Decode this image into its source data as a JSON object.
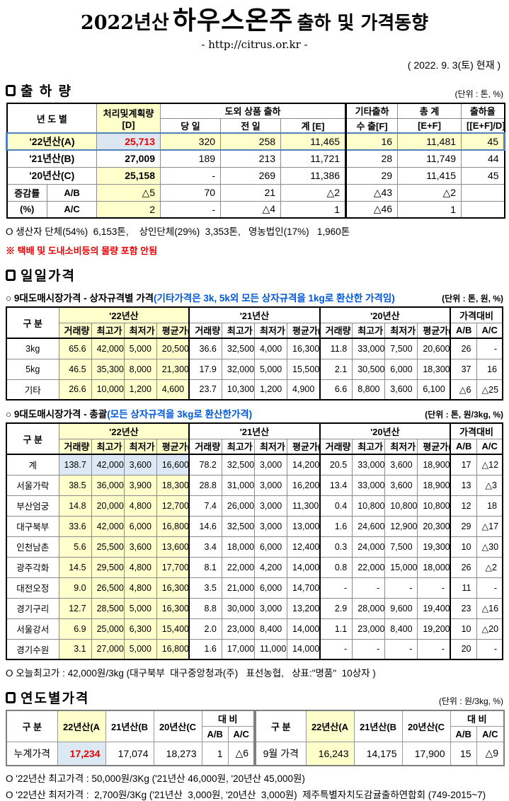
{
  "colors": {
    "highlight_yellow": "#FFFFCC",
    "highlight_blue": "#DCE9F5",
    "alert_red": "#E80000",
    "note_blue": "#0057D8",
    "row_outline_blue": "#4F81BD"
  },
  "header": {
    "title_prefix": "2022년산",
    "title_main": "하우스온주",
    "title_suffix": "출하 및 가격동향",
    "url": "- http://citrus.or.kr -",
    "date": "( 2022. 9. 3(토) 현재 )"
  },
  "shipment": {
    "section_title": "출 하 량",
    "unit": "(단위 : 톤, %)",
    "head": {
      "year": "년 도 별",
      "plan1": "처리및계획량",
      "plan2": "[D]",
      "group": "도외 상품 출하",
      "today": "당 일",
      "prev": "전 일",
      "total": "계 [E]",
      "etc1": "기타출하",
      "etc2": "수 출[F]",
      "sum1": "총  계",
      "sum2": "[E+F]",
      "rate1": "출하율",
      "rate2": "[[E+F]/D]"
    },
    "rows": [
      {
        "label": "'22년산(A)",
        "plan": "25,713",
        "today": "320",
        "prev": "258",
        "total": "11,465",
        "export": "16",
        "sum": "11,481",
        "rate": "45"
      },
      {
        "label": "'21년산(B)",
        "plan": "27,009",
        "today": "189",
        "prev": "213",
        "total": "11,721",
        "export": "28",
        "sum": "11,749",
        "rate": "44"
      },
      {
        "label": "'20년산(C)",
        "plan": "25,158",
        "today": "-",
        "prev": "269",
        "total": "11,386",
        "export": "29",
        "sum": "11,415",
        "rate": "45"
      }
    ],
    "change_rows": [
      {
        "label1": "증감률",
        "label2": "A/B",
        "plan": "△5",
        "today": "70",
        "prev": "21",
        "total": "△2",
        "export": "△43",
        "sum": "△2",
        "rate": ""
      },
      {
        "label1": "(%)",
        "label2": "A/C",
        "plan": "2",
        "today": "-",
        "prev": "△4",
        "total": "1",
        "export": "△46",
        "sum": "1",
        "rate": ""
      }
    ],
    "note": "O 생산자 단체(54%)  6,153톤,    상인단체(29%)  3,353톤,   영농법인(17%)   1,960톤",
    "warning": "※ 택배 및 도내소비등의 물량 포함 안됨"
  },
  "daily": {
    "section_title": "일일가격",
    "col_group": "구  분",
    "years": [
      "'22년산",
      "'21년산",
      "'20년산"
    ],
    "compare": "가격대비",
    "sub_headers": [
      "거래량",
      "최고가",
      "최저가",
      "평균가(A)",
      "거래량",
      "최고가",
      "최저가",
      "평균가(B)",
      "거래량",
      "최고가",
      "최저가",
      "평균가(C)",
      "A/B",
      "A/C"
    ],
    "table_box": {
      "title": "○ 9대도매시장가격 - 상자규격별 가격",
      "title_note": "(기타가격은 3k, 5k외 모든 상자규격을 1kg로 환산한 가격임)",
      "unit": "(단위 : 톤, 원, %)",
      "rows": [
        [
          "3kg",
          "65.6",
          "42,000",
          "5,000",
          "20,500",
          "36.6",
          "32,500",
          "4,000",
          "16,300",
          "11.8",
          "33,000",
          "7,500",
          "20,600",
          "26",
          "-"
        ],
        [
          "5kg",
          "46.5",
          "35,300",
          "8,000",
          "21,300",
          "17.9",
          "32,000",
          "5,000",
          "15,500",
          "2.1",
          "30,500",
          "6,000",
          "18,300",
          "37",
          "16"
        ],
        [
          "기타",
          "26.6",
          "10,000",
          "1,200",
          "4,600",
          "23.7",
          "10,300",
          "1,200",
          "4,900",
          "6.6",
          "8,800",
          "3,600",
          "6,100",
          "△6",
          "△25"
        ]
      ]
    },
    "table_total": {
      "title": "○ 9대도매시장가격 - 총괄",
      "title_note": "(모든 상자규격을 3kg로 환산한가격)",
      "unit": "(단위 : 톤, 원/3kg, %)",
      "rows": [
        [
          "계",
          "138.7",
          "42,000",
          "3,600",
          "16,600",
          "78.2",
          "32,500",
          "3,000",
          "14,200",
          "20.5",
          "33,000",
          "3,600",
          "18,900",
          "17",
          "△12"
        ],
        [
          "서울가락",
          "38.5",
          "36,000",
          "3,900",
          "18,300",
          "28.8",
          "31,000",
          "3,000",
          "16,200",
          "13.4",
          "33,000",
          "3,600",
          "18,900",
          "13",
          "△3"
        ],
        [
          "부산엄궁",
          "14.8",
          "20,000",
          "4,800",
          "12,700",
          "7.4",
          "26,000",
          "3,000",
          "11,300",
          "0.4",
          "10,800",
          "10,800",
          "10,800",
          "12",
          "18"
        ],
        [
          "대구북부",
          "33.6",
          "42,000",
          "6,000",
          "16,800",
          "14.6",
          "32,500",
          "3,000",
          "13,000",
          "1.6",
          "24,600",
          "12,900",
          "20,300",
          "29",
          "△17"
        ],
        [
          "인천남촌",
          "5.6",
          "25,500",
          "3,600",
          "13,600",
          "3.4",
          "18,000",
          "6,000",
          "12,400",
          "0.3",
          "24,000",
          "7,500",
          "19,300",
          "10",
          "△30"
        ],
        [
          "광주각화",
          "14.5",
          "29,500",
          "4,800",
          "17,700",
          "8.1",
          "22,000",
          "4,200",
          "14,000",
          "0.8",
          "22,000",
          "15,000",
          "18,000",
          "26",
          "△2"
        ],
        [
          "대전오정",
          "9.0",
          "26,500",
          "4,800",
          "16,300",
          "3.5",
          "21,000",
          "6,000",
          "14,700",
          "-",
          "-",
          "-",
          "-",
          "11",
          "-"
        ],
        [
          "경기구리",
          "12.7",
          "28,500",
          "5,000",
          "16,300",
          "8.8",
          "30,000",
          "3,000",
          "13,200",
          "2.9",
          "28,000",
          "9,600",
          "19,400",
          "23",
          "△16"
        ],
        [
          "서울강서",
          "6.9",
          "25,000",
          "6,300",
          "15,400",
          "2.0",
          "23,000",
          "8,400",
          "14,000",
          "1.1",
          "23,000",
          "8,400",
          "19,200",
          "10",
          "△20"
        ],
        [
          "경기수원",
          "3.1",
          "27,000",
          "5,000",
          "16,800",
          "1.6",
          "17,000",
          "11,000",
          "14,000",
          "-",
          "-",
          "-",
          "-",
          "20",
          "-"
        ]
      ]
    },
    "note": "O 오늘최고가 : 42,000원/3kg (대구북부  대구중앙청과(주)   표선농협,   상표:\"명품\"  10상자 )"
  },
  "yearly": {
    "section_title": "연도별가격",
    "unit": "(단위 : 원/3kg, %)",
    "head": {
      "group": "구    분",
      "y22": "22년산(A",
      "y21": "21년산(B",
      "y20": "20년산(C",
      "compare": "대    비",
      "ab": "A/B",
      "ac": "A/C"
    },
    "left": {
      "label": "누계가격",
      "y22": "17,234",
      "y21": "17,074",
      "y20": "18,273",
      "ab": "1",
      "ac": "△6"
    },
    "right": {
      "label": "9월 가격",
      "y22": "16,243",
      "y21": "14,175",
      "y20": "17,900",
      "ab": "15",
      "ac": "△9"
    }
  },
  "footer": {
    "line1": "O '22년산 최고가격 : 50,000원/3Kg ('21년산 46,000원, '20년산 45,000원)",
    "line2": "O '22년산 최저가격 :  2,700원/3Kg ('21년산  3,000원, '20년산  3,000원)  제주특별자치도감귤출하연합회 (749-2015~7)"
  }
}
